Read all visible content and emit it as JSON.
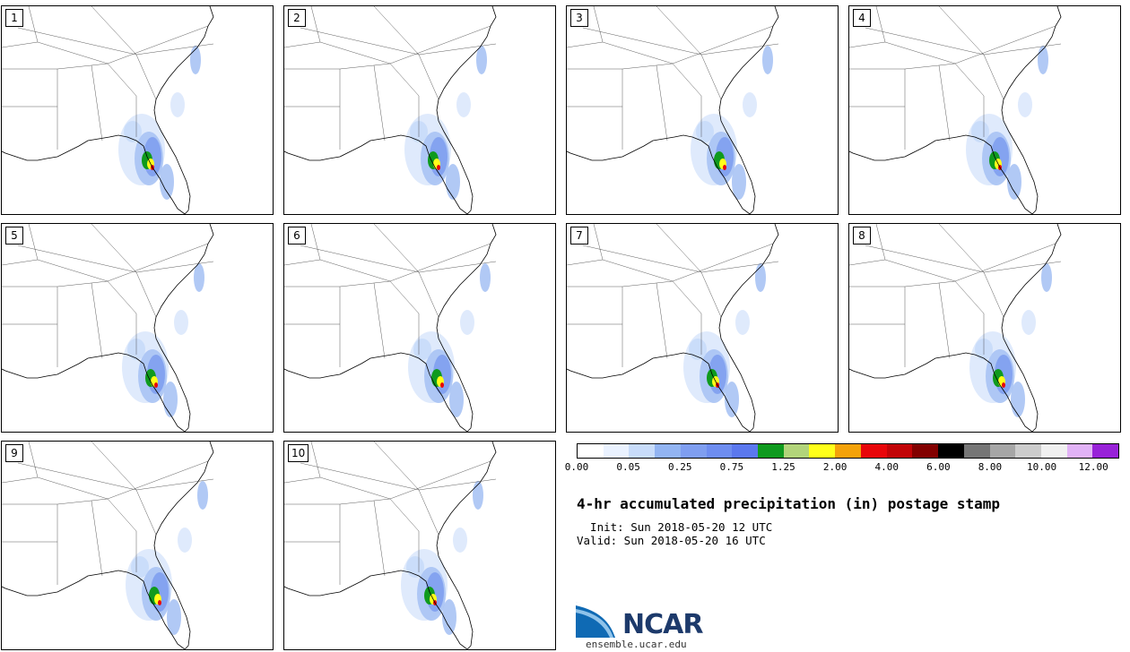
{
  "title": "4-hr accumulated precipitation (in) postage stamp",
  "init_text": "  Init: Sun 2018-05-20 12 UTC",
  "valid_text": "Valid: Sun 2018-05-20 16 UTC",
  "members": [
    "1",
    "2",
    "3",
    "4",
    "5",
    "6",
    "7",
    "8",
    "9",
    "10"
  ],
  "colorbar": {
    "colors": [
      "#ffffff",
      "#eaf2ff",
      "#c8dcfa",
      "#92b4f2",
      "#7f9ef0",
      "#6e8df0",
      "#5b78ee",
      "#0f9a1e",
      "#b2d47a",
      "#ffff1a",
      "#f4a20a",
      "#e8060a",
      "#c20407",
      "#820000",
      "#000000",
      "#767676",
      "#a6a6a6",
      "#cccccc",
      "#f0f0f0",
      "#e1b2f6",
      "#9822d8"
    ],
    "tick_labels": [
      "0.00",
      "0.05",
      "0.25",
      "0.75",
      "1.25",
      "2.00",
      "4.00",
      "6.00",
      "8.00",
      "10.00",
      "12.00"
    ]
  },
  "logo": {
    "text": "NCAR",
    "url": "ensemble.ucar.edu"
  }
}
